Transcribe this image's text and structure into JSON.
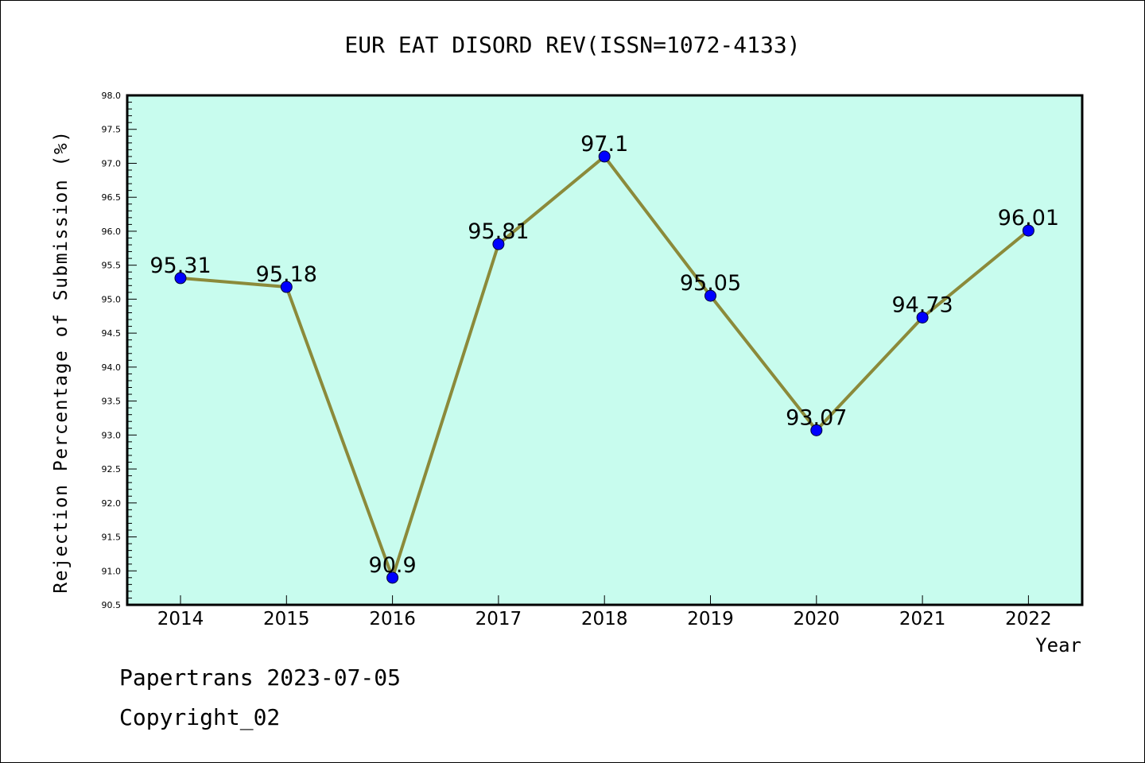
{
  "chart_data": {
    "type": "line",
    "title": "EUR EAT DISORD REV(ISSN=1072-4133)",
    "xlabel": "Year",
    "ylabel": "Rejection Percentage of Submission (%)",
    "categories": [
      "2014",
      "2015",
      "2016",
      "2017",
      "2018",
      "2019",
      "2020",
      "2021",
      "2022"
    ],
    "values": [
      95.31,
      95.18,
      90.9,
      95.81,
      97.1,
      95.05,
      93.07,
      94.73,
      96.01
    ],
    "data_labels": [
      "95.31",
      "95.18",
      "90.9",
      "95.81",
      "97.1",
      "95.05",
      "93.07",
      "94.73",
      "96.01"
    ],
    "ylim": [
      90.5,
      98.0
    ],
    "yticks": [
      "90.5",
      "91.0",
      "91.5",
      "92.0",
      "92.5",
      "93.0",
      "93.5",
      "94.0",
      "94.5",
      "95.0",
      "95.5",
      "96.0",
      "96.5",
      "97.0",
      "97.5",
      "98.0"
    ],
    "grid": false,
    "legend": "none",
    "colors": {
      "plot_background": "#c8fcee",
      "line": "#8b8a3a",
      "marker": "#0000ff"
    }
  },
  "footer": {
    "line1": "Papertrans 2023-07-05",
    "line2": "Copyright_02"
  }
}
